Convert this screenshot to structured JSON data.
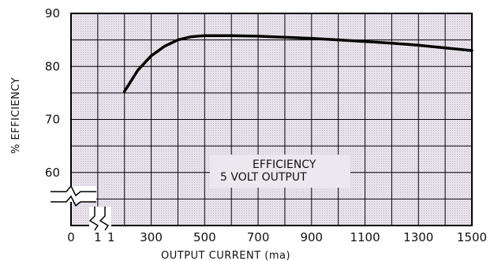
{
  "chart_data": {
    "type": "line",
    "title": "",
    "xlabel": "OUTPUT CURRENT (ma)",
    "ylabel": "% EFFICIENCY",
    "xlim": [
      0,
      1500
    ],
    "ylim": [
      50,
      90
    ],
    "x_ticks": [
      "0",
      "1",
      "1",
      "300",
      "500",
      "700",
      "900",
      "1100",
      "1300",
      "1500"
    ],
    "y_ticks": [
      "90",
      "80",
      "70",
      "60"
    ],
    "grid": true,
    "axis_breaks": [
      "x",
      "y"
    ],
    "annotation_lines": [
      "EFFICIENCY",
      "5 VOLT OUTPUT"
    ],
    "series": [
      {
        "x": [
          200,
          250,
          300,
          350,
          400,
          450,
          500,
          600,
          700,
          800,
          900,
          1000,
          1100,
          1200,
          1300,
          1400,
          1500
        ],
        "y": [
          75.3,
          79.3,
          82.0,
          83.8,
          85.0,
          85.6,
          85.8,
          85.8,
          85.7,
          85.5,
          85.3,
          85.0,
          84.7,
          84.4,
          84.0,
          83.5,
          83.0
        ]
      }
    ],
    "colors": {
      "line": "#000000",
      "plot_background": "#e6e0ea",
      "grid": "#000000"
    }
  }
}
